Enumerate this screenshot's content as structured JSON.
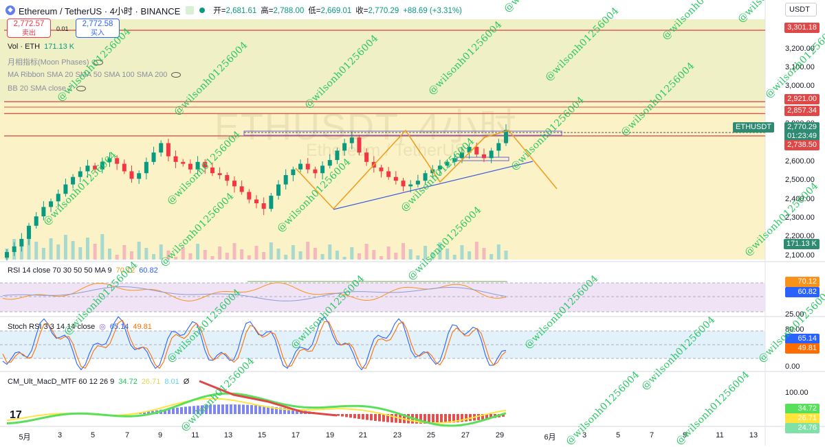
{
  "header": {
    "coin_icon": "eth-coin-icon",
    "title": "Ethereum / TetherUS · 4小时 · BINANCE",
    "ohlc": {
      "open_label": "开=",
      "open": "2,681.61",
      "high_label": "高=",
      "high": "2,788.00",
      "low_label": "低=",
      "low": "2,669.01",
      "close_label": "收=",
      "close": "2,770.29",
      "change": "+88.69 (+3.31%)"
    }
  },
  "trade": {
    "sell_price": "2,772.57",
    "sell_label": "卖出",
    "spread": "0.01",
    "buy_price": "2,772.58",
    "buy_label": "买入"
  },
  "indicators": {
    "vol_label": "Vol · ETH",
    "vol_value": "171.13 K",
    "moon": "月相指标(Moon Phases)",
    "ma_ribbon": "MA Ribbon SMA 20 SMA 50 SMA 100 SMA 200",
    "bb": "BB 20 SMA close 2",
    "rsi_label": "RSI 14 close 70 30 50 50 MA 9",
    "rsi_value": "70.12",
    "rsi_ma": "60.82",
    "stoch_label": "Stoch RSI 3 3 14 14 close",
    "stoch_k": "65.14",
    "stoch_d": "49.81",
    "macd_label": "CM_Ult_MacD_MTF 60 12 26 9",
    "macd_1": "34.72",
    "macd_2": "26.71",
    "macd_3": "8.01",
    "macd_4": "Ø"
  },
  "currency": "USDT",
  "watermark": {
    "big": "ETHUSDT, 4小时",
    "sub": "Ethereum / TetherUS",
    "text": "@wilsonh01256004"
  },
  "price_axis": [
    "3,200.00",
    "3,100.00",
    "3,000.00",
    "2,800.00",
    "2,700.00",
    "2,600.00",
    "2,500.00",
    "2,400.00",
    "2,300.00",
    "2,200.00",
    "2,100.00"
  ],
  "badges": {
    "line1": "3,301.18",
    "line2": "2,921.00",
    "line3": "2,857.34",
    "symbol": "ETHUSDT",
    "last": "2,770.29",
    "countdown": "01:23:49",
    "line4": "2,738.50",
    "vol": "171.13 K",
    "rsi": "70.12",
    "rsi_ma": "60.82",
    "stoch_k": "65.14",
    "stoch_d": "49.81",
    "macd_a": "34.72",
    "macd_b": "26.71",
    "macd_c": "24.76"
  },
  "rsi_axis": [
    "70.00",
    "25.00"
  ],
  "stoch_axis": [
    "80.00",
    "0.00"
  ],
  "macd_axis": [
    "100.00"
  ],
  "colors": {
    "up": "#089981",
    "down": "#f23645",
    "pattern": "#f0a020",
    "trend": "#3b5bdb",
    "rsi": "#f7931a",
    "stoch_k": "#2962ff",
    "stoch_d": "#ff6d00",
    "watermark": "#22c55e"
  },
  "chart_data": {
    "type": "candlestick",
    "symbol": "ETHUSDT",
    "interval": "4小时",
    "exchange": "BINANCE",
    "ylim": [
      2080,
      3360
    ],
    "x_ticks": [
      "5月",
      "3",
      "5",
      "7",
      "9",
      "11",
      "13",
      "15",
      "17",
      "19",
      "21",
      "23",
      "25",
      "27",
      "29",
      "6月",
      "3",
      "5",
      "7",
      "9",
      "11",
      "13"
    ],
    "ohlc_last": {
      "open": 2681.61,
      "high": 2788.0,
      "low": 2669.01,
      "close": 2770.29
    },
    "candles_close_approx": [
      2120,
      2150,
      2190,
      2260,
      2310,
      2360,
      2390,
      2430,
      2480,
      2520,
      2550,
      2580,
      2560,
      2600,
      2620,
      2590,
      2550,
      2510,
      2540,
      2600,
      2650,
      2700,
      2630,
      2600,
      2590,
      2560,
      2600,
      2570,
      2540,
      2530,
      2500,
      2470,
      2440,
      2400,
      2380,
      2350,
      2420,
      2480,
      2530,
      2560,
      2590,
      2560,
      2540,
      2580,
      2610,
      2660,
      2700,
      2730,
      2650,
      2600,
      2570,
      2550,
      2520,
      2500,
      2470,
      2480,
      2500,
      2540,
      2560,
      2580,
      2600,
      2620,
      2650,
      2680,
      2640,
      2620,
      2660,
      2700,
      2770
    ],
    "horizontal_lines": [
      3301.18,
      2921.0,
      2857.34,
      2738.5
    ],
    "rsi": {
      "value": 70.12,
      "ma": 60.82
    },
    "stoch_rsi": {
      "k": 65.14,
      "d": 49.81
    },
    "volume_last": "171.13 K"
  }
}
